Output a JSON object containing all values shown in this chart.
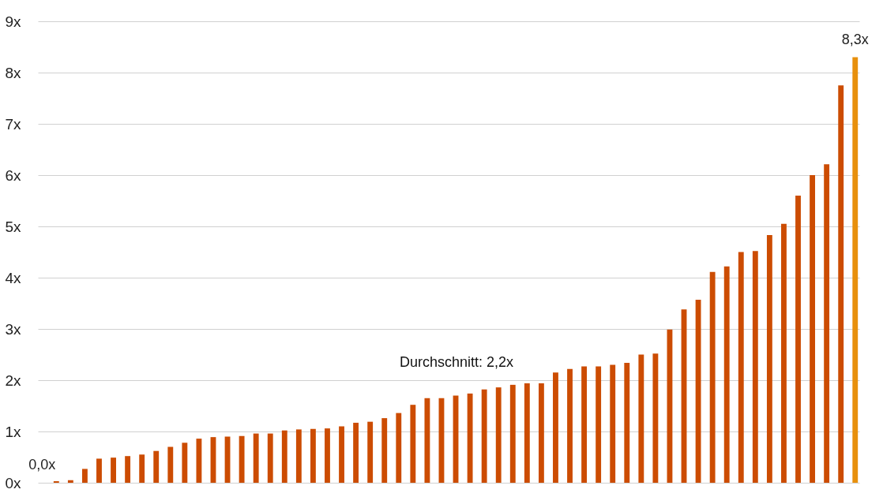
{
  "chart_data": {
    "type": "bar",
    "categories": [
      null,
      null,
      null,
      null,
      null,
      null,
      null,
      null,
      null,
      null,
      null,
      null,
      null,
      null,
      null,
      null,
      null,
      null,
      null,
      null,
      null,
      null,
      null,
      null,
      null,
      null,
      null,
      null,
      null,
      null,
      null,
      null,
      null,
      null,
      null,
      null,
      null,
      null,
      null,
      null,
      null,
      null,
      null,
      null,
      null,
      null,
      null,
      null,
      null,
      null,
      null,
      null,
      null,
      null,
      null,
      null,
      null,
      null
    ],
    "values": [
      0.0,
      0.03,
      0.05,
      0.27,
      0.47,
      0.49,
      0.52,
      0.55,
      0.62,
      0.7,
      0.78,
      0.86,
      0.89,
      0.9,
      0.91,
      0.96,
      0.96,
      1.02,
      1.04,
      1.05,
      1.06,
      1.1,
      1.17,
      1.19,
      1.26,
      1.36,
      1.52,
      1.65,
      1.65,
      1.7,
      1.74,
      1.82,
      1.86,
      1.91,
      1.94,
      1.94,
      2.15,
      2.22,
      2.27,
      2.27,
      2.3,
      2.34,
      2.5,
      2.52,
      2.99,
      3.38,
      3.57,
      4.11,
      4.22,
      4.5,
      4.52,
      4.83,
      5.05,
      5.6,
      6.0,
      6.21,
      7.75,
      8.3
    ],
    "colors": [
      "#e8900c",
      "#cc4c02",
      "#cc4c02",
      "#cc4c02",
      "#cc4c02",
      "#cc4c02",
      "#cc4c02",
      "#cc4c02",
      "#cc4c02",
      "#cc4c02",
      "#cc4c02",
      "#cc4c02",
      "#cc4c02",
      "#cc4c02",
      "#cc4c02",
      "#cc4c02",
      "#cc4c02",
      "#cc4c02",
      "#cc4c02",
      "#cc4c02",
      "#cc4c02",
      "#cc4c02",
      "#cc4c02",
      "#cc4c02",
      "#cc4c02",
      "#cc4c02",
      "#cc4c02",
      "#cc4c02",
      "#cc4c02",
      "#cc4c02",
      "#cc4c02",
      "#cc4c02",
      "#cc4c02",
      "#cc4c02",
      "#cc4c02",
      "#cc4c02",
      "#cc4c02",
      "#cc4c02",
      "#cc4c02",
      "#cc4c02",
      "#cc4c02",
      "#cc4c02",
      "#cc4c02",
      "#cc4c02",
      "#cc4c02",
      "#cc4c02",
      "#cc4c02",
      "#cc4c02",
      "#cc4c02",
      "#cc4c02",
      "#cc4c02",
      "#cc4c02",
      "#cc4c02",
      "#cc4c02",
      "#cc4c02",
      "#cc4c02",
      "#cc4c02",
      "#e8900c"
    ],
    "value_labels": [
      "0,0x",
      null,
      null,
      null,
      null,
      null,
      null,
      null,
      null,
      null,
      null,
      null,
      null,
      null,
      null,
      null,
      null,
      null,
      null,
      null,
      null,
      null,
      null,
      null,
      null,
      null,
      null,
      null,
      null,
      null,
      null,
      null,
      null,
      null,
      null,
      null,
      null,
      null,
      null,
      null,
      null,
      null,
      null,
      null,
      null,
      null,
      null,
      null,
      null,
      null,
      null,
      null,
      null,
      null,
      null,
      null,
      null,
      "8,3x"
    ],
    "ylim": [
      0,
      9
    ],
    "yticks": [
      {
        "value": 0,
        "label": "0x"
      },
      {
        "value": 1,
        "label": "1x"
      },
      {
        "value": 2,
        "label": "2x"
      },
      {
        "value": 3,
        "label": "3x"
      },
      {
        "value": 4,
        "label": "4x"
      },
      {
        "value": 5,
        "label": "5x"
      },
      {
        "value": 6,
        "label": "6x"
      },
      {
        "value": 7,
        "label": "7x"
      },
      {
        "value": 8,
        "label": "8x"
      },
      {
        "value": 9,
        "label": "9x"
      }
    ],
    "grid": "y",
    "tick_labels": "y",
    "annotations": [
      "Durchschnitt: 2,2x"
    ]
  }
}
